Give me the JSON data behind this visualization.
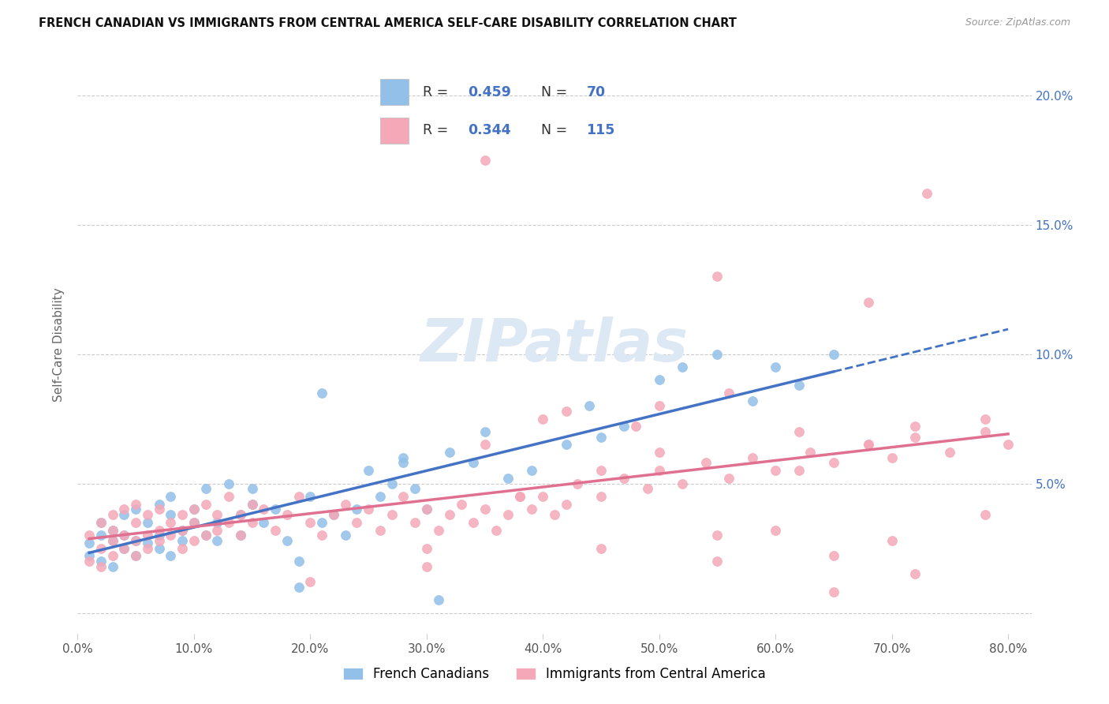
{
  "title": "FRENCH CANADIAN VS IMMIGRANTS FROM CENTRAL AMERICA SELF-CARE DISABILITY CORRELATION CHART",
  "source": "Source: ZipAtlas.com",
  "ylabel": "Self-Care Disability",
  "xlim": [
    0.0,
    0.82
  ],
  "ylim": [
    -0.008,
    0.215
  ],
  "xticks": [
    0.0,
    0.1,
    0.2,
    0.3,
    0.4,
    0.5,
    0.6,
    0.7,
    0.8
  ],
  "yticks": [
    0.0,
    0.05,
    0.1,
    0.15,
    0.2
  ],
  "xtick_labels": [
    "0.0%",
    "10.0%",
    "20.0%",
    "30.0%",
    "40.0%",
    "50.0%",
    "60.0%",
    "70.0%",
    "80.0%"
  ],
  "right_ytick_labels": [
    "",
    "5.0%",
    "10.0%",
    "15.0%",
    "20.0%"
  ],
  "blue_color": "#92C0E8",
  "pink_color": "#F4A8B8",
  "trend_blue": "#4472C4",
  "trend_pink": "#E07090",
  "label1": "French Canadians",
  "label2": "Immigrants from Central America",
  "legend_r1": "0.459",
  "legend_n1": "70",
  "legend_r2": "0.344",
  "legend_n2": "115",
  "blue_scatter_x": [
    0.01,
    0.01,
    0.02,
    0.02,
    0.02,
    0.03,
    0.03,
    0.03,
    0.04,
    0.04,
    0.04,
    0.05,
    0.05,
    0.05,
    0.06,
    0.06,
    0.07,
    0.07,
    0.07,
    0.08,
    0.08,
    0.08,
    0.09,
    0.09,
    0.1,
    0.1,
    0.11,
    0.11,
    0.12,
    0.12,
    0.13,
    0.14,
    0.14,
    0.15,
    0.15,
    0.16,
    0.17,
    0.18,
    0.19,
    0.2,
    0.21,
    0.22,
    0.23,
    0.24,
    0.25,
    0.26,
    0.27,
    0.28,
    0.29,
    0.3,
    0.32,
    0.34,
    0.35,
    0.37,
    0.39,
    0.42,
    0.44,
    0.45,
    0.47,
    0.5,
    0.52,
    0.55,
    0.58,
    0.6,
    0.62,
    0.65,
    0.28,
    0.31,
    0.19,
    0.21
  ],
  "blue_scatter_y": [
    0.027,
    0.022,
    0.03,
    0.02,
    0.035,
    0.028,
    0.032,
    0.018,
    0.025,
    0.038,
    0.03,
    0.022,
    0.04,
    0.028,
    0.035,
    0.027,
    0.042,
    0.03,
    0.025,
    0.038,
    0.022,
    0.045,
    0.032,
    0.028,
    0.04,
    0.035,
    0.03,
    0.048,
    0.035,
    0.028,
    0.05,
    0.038,
    0.03,
    0.042,
    0.048,
    0.035,
    0.04,
    0.028,
    0.02,
    0.045,
    0.035,
    0.038,
    0.03,
    0.04,
    0.055,
    0.045,
    0.05,
    0.06,
    0.048,
    0.04,
    0.062,
    0.058,
    0.07,
    0.052,
    0.055,
    0.065,
    0.08,
    0.068,
    0.072,
    0.09,
    0.095,
    0.1,
    0.082,
    0.095,
    0.088,
    0.1,
    0.058,
    0.005,
    0.01,
    0.085
  ],
  "pink_scatter_x": [
    0.01,
    0.01,
    0.02,
    0.02,
    0.02,
    0.03,
    0.03,
    0.03,
    0.03,
    0.04,
    0.04,
    0.04,
    0.05,
    0.05,
    0.05,
    0.05,
    0.06,
    0.06,
    0.06,
    0.07,
    0.07,
    0.07,
    0.08,
    0.08,
    0.09,
    0.09,
    0.09,
    0.1,
    0.1,
    0.1,
    0.11,
    0.11,
    0.12,
    0.12,
    0.13,
    0.13,
    0.14,
    0.14,
    0.15,
    0.15,
    0.16,
    0.17,
    0.18,
    0.19,
    0.2,
    0.21,
    0.22,
    0.23,
    0.24,
    0.25,
    0.26,
    0.27,
    0.28,
    0.29,
    0.3,
    0.31,
    0.32,
    0.33,
    0.34,
    0.35,
    0.36,
    0.37,
    0.38,
    0.39,
    0.4,
    0.41,
    0.42,
    0.43,
    0.45,
    0.47,
    0.49,
    0.5,
    0.52,
    0.54,
    0.56,
    0.58,
    0.6,
    0.63,
    0.65,
    0.68,
    0.7,
    0.72,
    0.75,
    0.78,
    0.8,
    0.48,
    0.35,
    0.42,
    0.55,
    0.62,
    0.68,
    0.72,
    0.3,
    0.38,
    0.45,
    0.5,
    0.55,
    0.6,
    0.65,
    0.7,
    0.4,
    0.5,
    0.56,
    0.62,
    0.68,
    0.73,
    0.78,
    0.2,
    0.3,
    0.45,
    0.55,
    0.65,
    0.72,
    0.78,
    0.35
  ],
  "pink_scatter_y": [
    0.02,
    0.03,
    0.025,
    0.018,
    0.035,
    0.028,
    0.022,
    0.038,
    0.032,
    0.025,
    0.04,
    0.03,
    0.028,
    0.035,
    0.022,
    0.042,
    0.03,
    0.025,
    0.038,
    0.032,
    0.028,
    0.04,
    0.035,
    0.03,
    0.025,
    0.038,
    0.032,
    0.04,
    0.028,
    0.035,
    0.03,
    0.042,
    0.038,
    0.032,
    0.045,
    0.035,
    0.03,
    0.038,
    0.042,
    0.035,
    0.04,
    0.032,
    0.038,
    0.045,
    0.035,
    0.03,
    0.038,
    0.042,
    0.035,
    0.04,
    0.032,
    0.038,
    0.045,
    0.035,
    0.04,
    0.032,
    0.038,
    0.042,
    0.035,
    0.04,
    0.032,
    0.038,
    0.045,
    0.04,
    0.045,
    0.038,
    0.042,
    0.05,
    0.045,
    0.052,
    0.048,
    0.055,
    0.05,
    0.058,
    0.052,
    0.06,
    0.055,
    0.062,
    0.058,
    0.065,
    0.06,
    0.068,
    0.062,
    0.07,
    0.065,
    0.072,
    0.065,
    0.078,
    0.13,
    0.055,
    0.065,
    0.072,
    0.025,
    0.045,
    0.055,
    0.062,
    0.02,
    0.032,
    0.022,
    0.028,
    0.075,
    0.08,
    0.085,
    0.07,
    0.12,
    0.162,
    0.075,
    0.012,
    0.018,
    0.025,
    0.03,
    0.008,
    0.015,
    0.038,
    0.175
  ]
}
